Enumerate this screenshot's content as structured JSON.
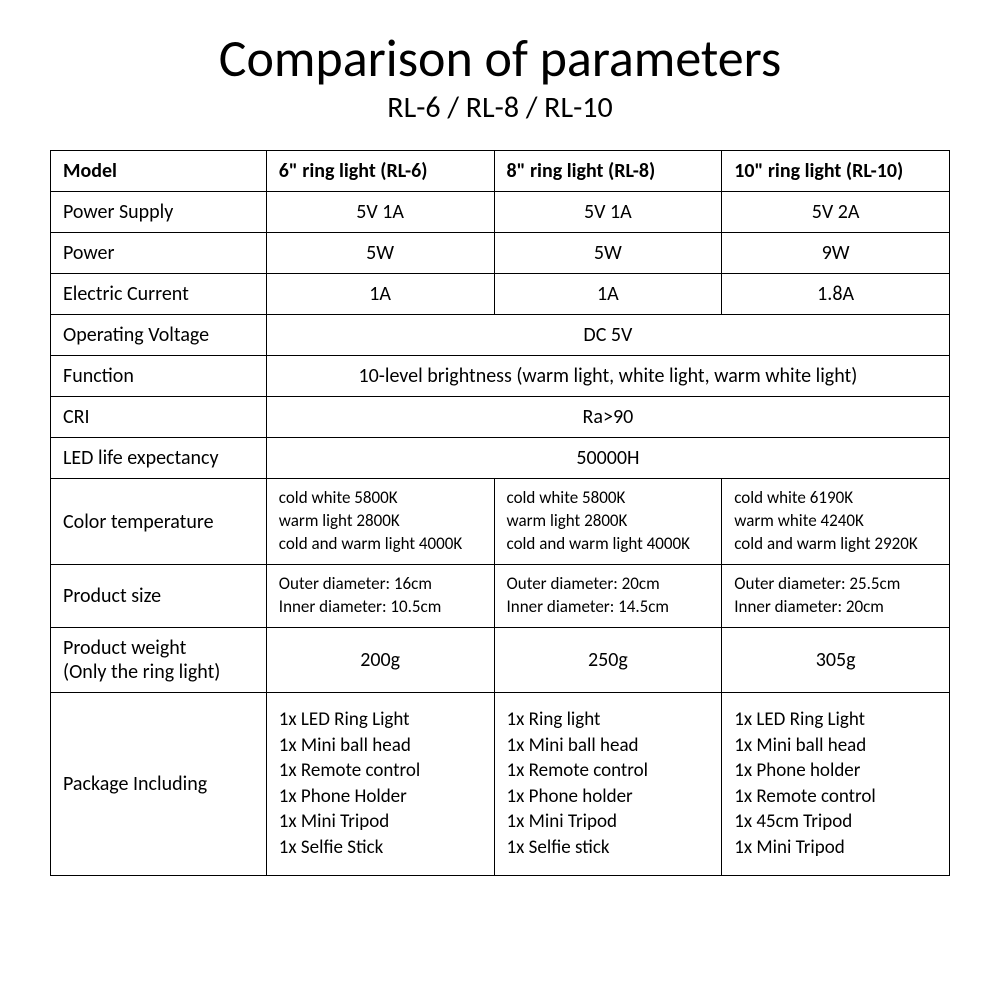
{
  "title": "Comparison of parameters",
  "subtitle": "RL-6 / RL-8 / RL-10",
  "columns": [
    "Model",
    "6\" ring light (RL-6)",
    "8\" ring light (RL-8)",
    "10\" ring light (RL-10)"
  ],
  "rows": {
    "power_supply": {
      "label": "Power Supply",
      "v": [
        "5V 1A",
        "5V 1A",
        "5V 2A"
      ]
    },
    "power": {
      "label": "Power",
      "v": [
        "5W",
        "5W",
        "9W"
      ]
    },
    "current": {
      "label": "Electric Current",
      "v": [
        "1A",
        "1A",
        "1.8A"
      ]
    },
    "voltage": {
      "label": "Operating Voltage",
      "merged": "DC 5V"
    },
    "function": {
      "label": "Function",
      "merged": "10-level brightness (warm light, white light, warm white light)"
    },
    "cri": {
      "label": "CRI",
      "merged": "Ra>90"
    },
    "led_life": {
      "label": "LED life expectancy",
      "merged": "50000H"
    },
    "color_temp": {
      "label": "Color temperature",
      "v": [
        [
          "cold white 5800K",
          "warm light 2800K",
          "cold and warm light 4000K"
        ],
        [
          "cold white 5800K",
          "warm light 2800K",
          "cold and warm light 4000K"
        ],
        [
          "cold white 6190K",
          "warm white 4240K",
          "cold and warm light 2920K"
        ]
      ]
    },
    "size": {
      "label": "Product size",
      "v": [
        [
          "Outer diameter: 16cm",
          "Inner diameter: 10.5cm"
        ],
        [
          "Outer diameter: 20cm",
          "Inner diameter: 14.5cm"
        ],
        [
          "Outer diameter: 25.5cm",
          "Inner diameter: 20cm"
        ]
      ]
    },
    "weight": {
      "label": "Product weight\n(Only the ring light)",
      "v": [
        "200g",
        "250g",
        "305g"
      ]
    },
    "package": {
      "label": "Package Including",
      "v": [
        [
          "1x LED Ring Light",
          "1x Mini ball head",
          "1x Remote control",
          "1x Phone Holder",
          "1x Mini Tripod",
          "1x Selfie Stick"
        ],
        [
          "1x Ring light",
          "1x Mini ball head",
          "1x Remote control",
          "1x Phone holder",
          "1x Mini Tripod",
          "1x Selfie stick"
        ],
        [
          "1x LED Ring Light",
          "1x Mini ball head",
          "1x Phone holder",
          "1x Remote control",
          "1x 45cm Tripod",
          "1x Mini Tripod"
        ]
      ]
    }
  },
  "style": {
    "background_color": "#ffffff",
    "text_color": "#000000",
    "border_color": "#000000",
    "title_fontsize": 52,
    "subtitle_fontsize": 30,
    "cell_fontsize": 20,
    "small_fontsize": 17
  }
}
